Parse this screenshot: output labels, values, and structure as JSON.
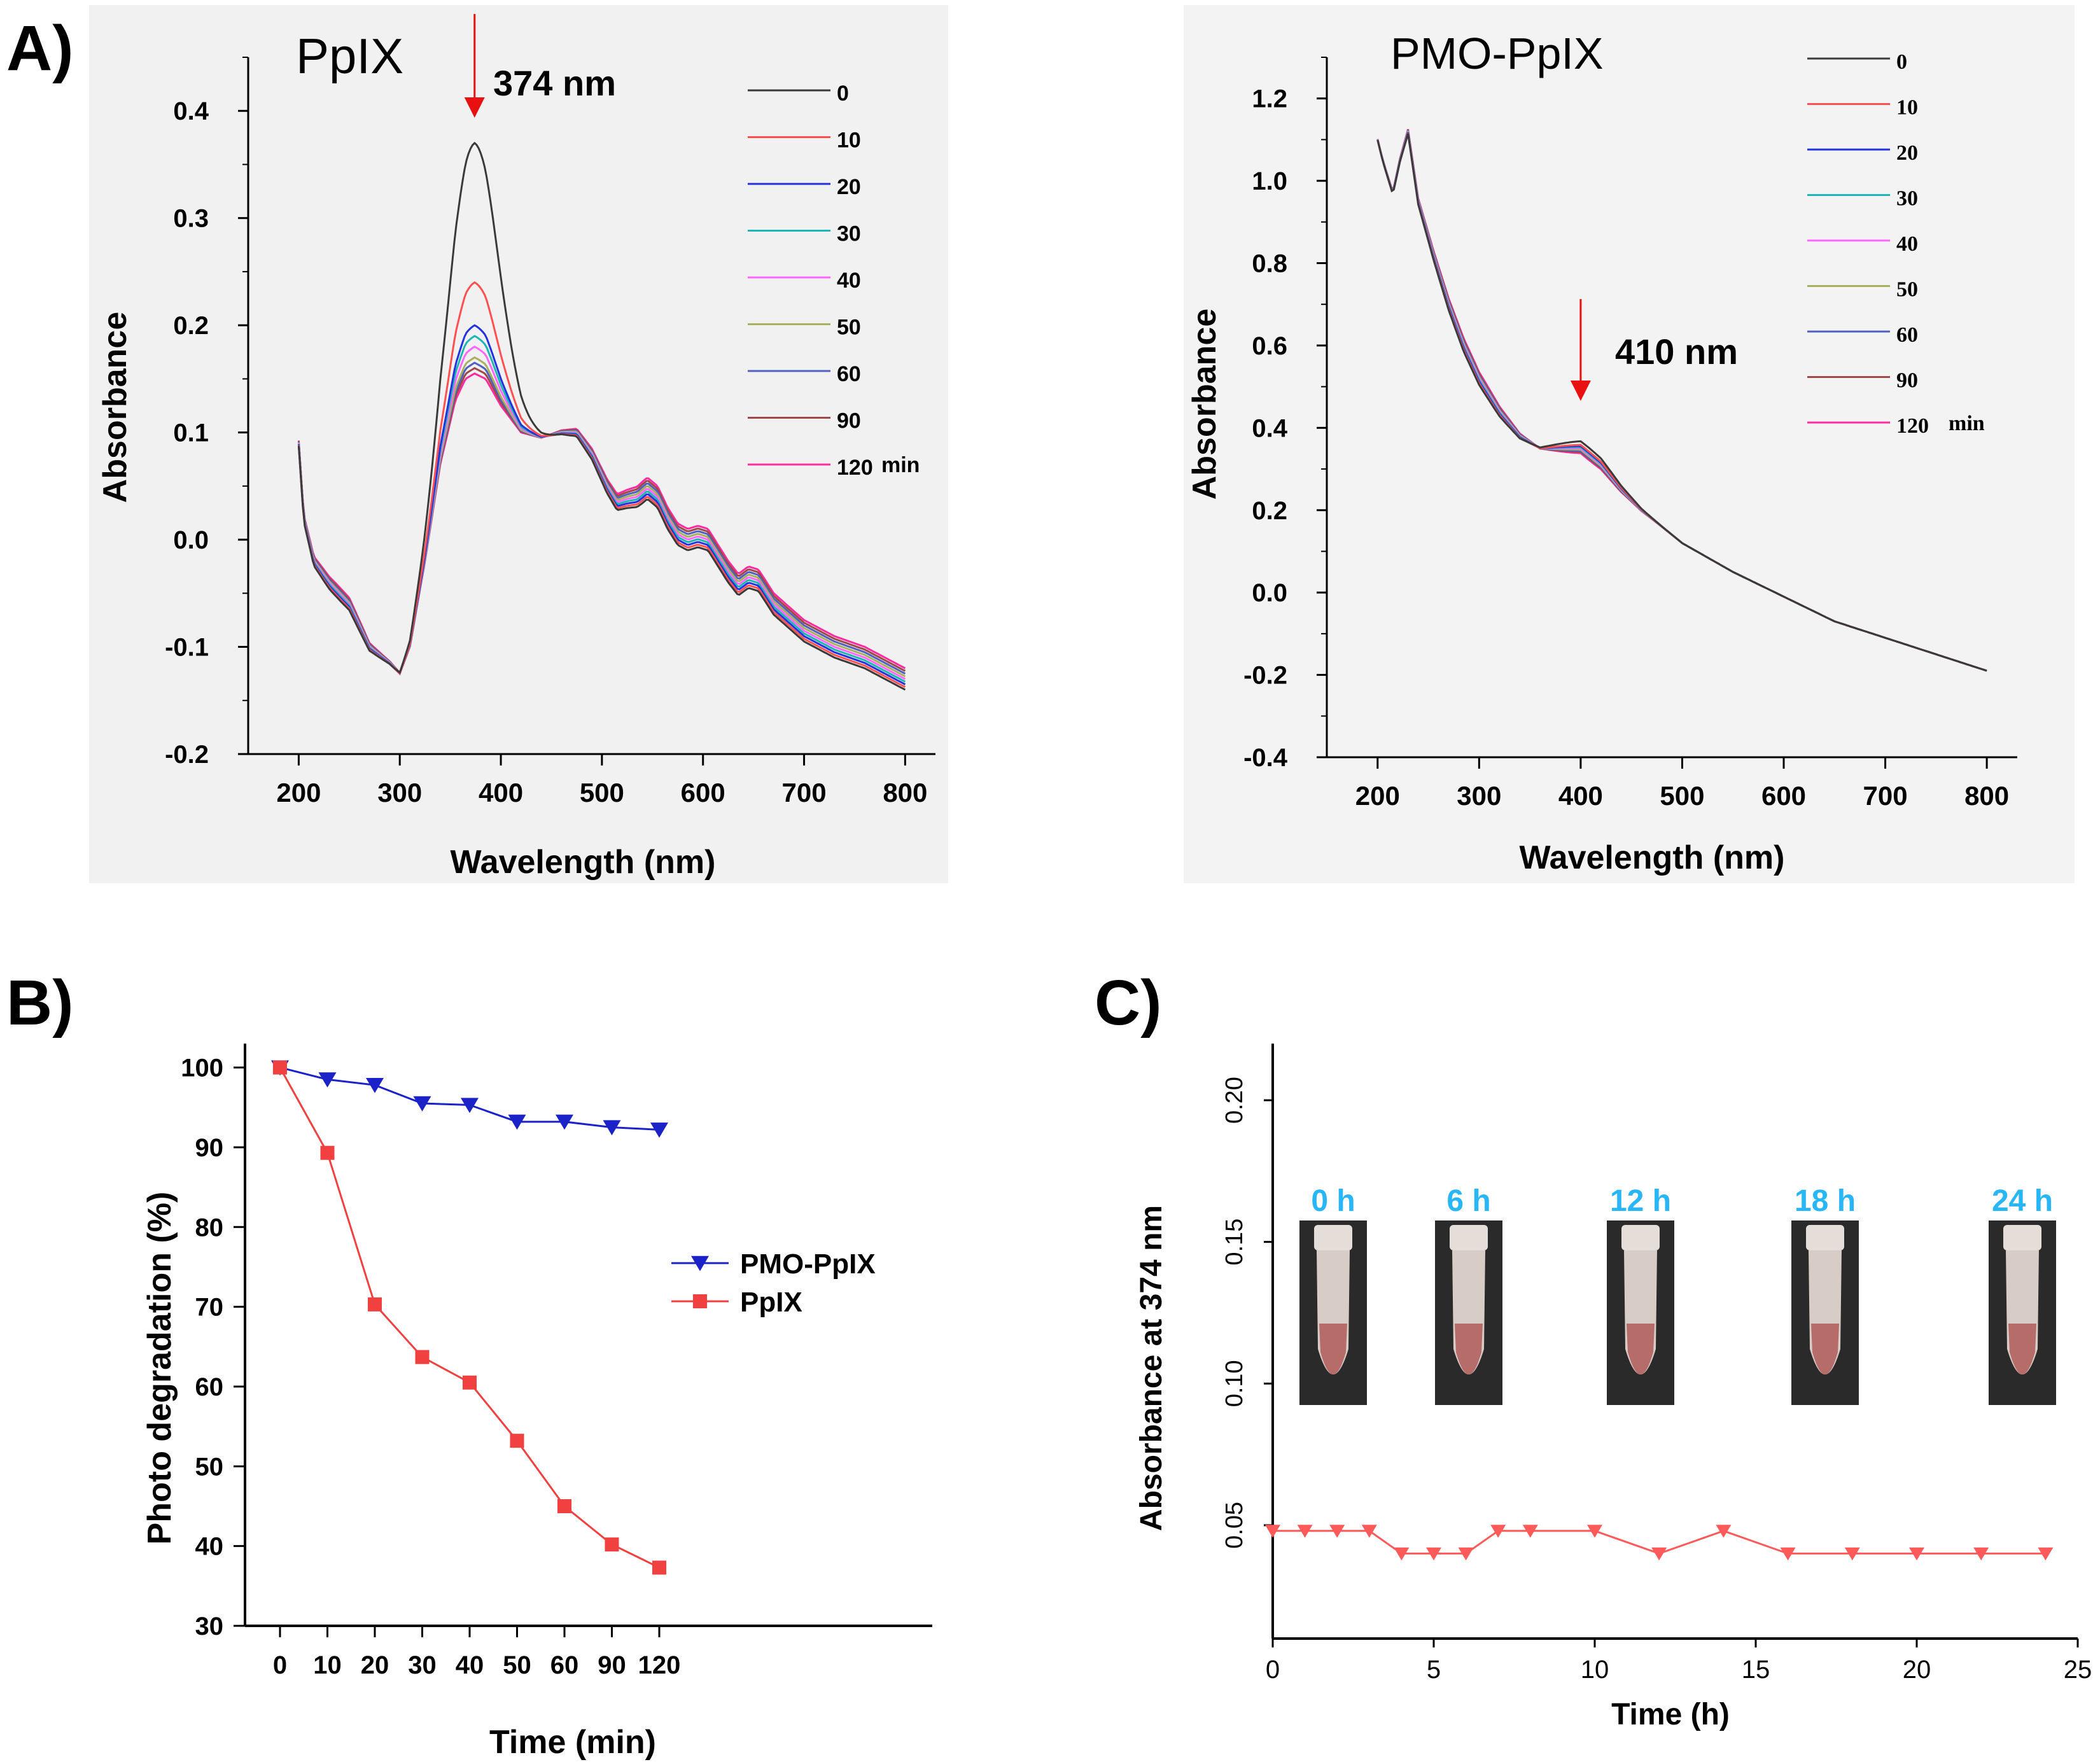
{
  "panel_labels": {
    "a": "A)",
    "b": "B)",
    "c": "C)"
  },
  "colors": {
    "series": [
      "#3a3a3a",
      "#ff5050",
      "#2233dd",
      "#1fb5b5",
      "#ff66ff",
      "#a8b060",
      "#5060c0",
      "#a04848",
      "#ff2aa0"
    ],
    "arrow": "#e81010",
    "pmo": "#1a22c8",
    "pplx": "#f04040",
    "stability": "#ff5a5a",
    "timepoint": "#29b6f6"
  },
  "chart_data": [
    {
      "id": "A1",
      "type": "line",
      "title": "PpIX",
      "annotation": "374 nm",
      "annotation_x": 374,
      "xlabel": "Wavelength (nm)",
      "ylabel": "Absorbance",
      "xlim": [
        150,
        830
      ],
      "ylim": [
        -0.2,
        0.45
      ],
      "xticks": [
        200,
        300,
        400,
        500,
        600,
        700,
        800
      ],
      "yticks": [
        -0.2,
        -0.1,
        0.0,
        0.1,
        0.2,
        0.3,
        0.4
      ],
      "ytick_labels": [
        "-0.2",
        "-0.1",
        "0.0",
        "0.1",
        "0.2",
        "0.3",
        "0.4"
      ],
      "legend": [
        "0",
        "10",
        "20",
        "30",
        "40",
        "50",
        "60",
        "90",
        "120"
      ],
      "legend_unit": "min",
      "peak_values": [
        0.37,
        0.24,
        0.2,
        0.19,
        0.18,
        0.17,
        0.165,
        0.16,
        0.155
      ],
      "base_curve": {
        "x": [
          200,
          205,
          215,
          230,
          250,
          270,
          290,
          300,
          310,
          325,
          340,
          355,
          365,
          374,
          385,
          400,
          420,
          440,
          460,
          475,
          490,
          505,
          515,
          525,
          535,
          545,
          555,
          565,
          575,
          585,
          595,
          605,
          615,
          625,
          635,
          645,
          655,
          670,
          700,
          730,
          760,
          790,
          800
        ],
        "y": [
          0.09,
          0.02,
          -0.02,
          -0.04,
          -0.06,
          -0.1,
          -0.115,
          -0.125,
          -0.1,
          -0.02,
          0.07,
          0.13,
          0.15,
          0.155,
          0.15,
          0.125,
          0.1,
          0.095,
          0.1,
          0.1,
          0.08,
          0.05,
          0.035,
          0.038,
          0.04,
          0.048,
          0.04,
          0.02,
          0.005,
          0.0,
          0.003,
          0.0,
          -0.015,
          -0.03,
          -0.042,
          -0.035,
          -0.038,
          -0.06,
          -0.085,
          -0.1,
          -0.11,
          -0.125,
          -0.13
        ]
      }
    },
    {
      "id": "A2",
      "type": "line",
      "title": "PMO-PpIX",
      "annotation": "410 nm",
      "annotation_x": 400,
      "xlabel": "Wavelength (nm)",
      "ylabel": "Absorbance",
      "xlim": [
        150,
        830
      ],
      "ylim": [
        -0.4,
        1.3
      ],
      "xticks": [
        200,
        300,
        400,
        500,
        600,
        700,
        800
      ],
      "yticks": [
        -0.4,
        -0.2,
        0.0,
        0.2,
        0.4,
        0.6,
        0.8,
        1.0,
        1.2
      ],
      "ytick_labels": [
        "-0.4",
        "-0.2",
        "0.0",
        "0.2",
        "0.4",
        "0.6",
        "0.8",
        "1.0",
        "1.2"
      ],
      "legend": [
        "0",
        "10",
        "20",
        "30",
        "40",
        "50",
        "60",
        "90",
        "120"
      ],
      "legend_unit": "min",
      "base_curve": {
        "x": [
          200,
          205,
          215,
          222,
          230,
          240,
          255,
          270,
          285,
          300,
          320,
          340,
          360,
          380,
          400,
          420,
          440,
          460,
          480,
          500,
          550,
          600,
          650,
          700,
          750,
          800
        ],
        "y": [
          1.1,
          1.05,
          0.97,
          1.05,
          1.12,
          0.95,
          0.82,
          0.7,
          0.6,
          0.52,
          0.44,
          0.38,
          0.35,
          0.35,
          0.35,
          0.31,
          0.25,
          0.2,
          0.16,
          0.12,
          0.05,
          -0.01,
          -0.07,
          -0.11,
          -0.15,
          -0.19
        ]
      }
    },
    {
      "id": "B",
      "type": "line",
      "xlabel": "Time (min)",
      "ylabel": "Photo degradation (%)",
      "categories": [
        "0",
        "10",
        "20",
        "30",
        "40",
        "50",
        "60",
        "90",
        "120"
      ],
      "ylim": [
        30,
        103
      ],
      "yticks": [
        30,
        40,
        50,
        60,
        70,
        80,
        90,
        100
      ],
      "series": [
        {
          "name": "PMO-PpIX",
          "marker": "triangle-down",
          "values": [
            100,
            98.5,
            97.8,
            95.5,
            95.3,
            93.2,
            93.2,
            92.5,
            92.2
          ]
        },
        {
          "name": "PpIX",
          "marker": "square",
          "values": [
            100,
            89.3,
            70.3,
            63.7,
            60.5,
            53.2,
            45.0,
            40.2,
            37.3
          ]
        }
      ]
    },
    {
      "id": "C",
      "type": "line",
      "xlabel": "Time (h)",
      "ylabel": "Absorbance at 374 nm",
      "xlim": [
        0,
        25
      ],
      "ylim": [
        0.01,
        0.22
      ],
      "xticks": [
        0,
        5,
        10,
        15,
        20,
        25
      ],
      "yticks": [
        0.05,
        0.1,
        0.15,
        0.2
      ],
      "ytick_labels": [
        "0.05",
        "0.10",
        "0.15",
        "0.20"
      ],
      "series": [
        {
          "name": "absorbance",
          "marker": "triangle-down",
          "x": [
            0,
            1,
            2,
            3,
            4,
            5,
            6,
            7,
            8,
            10,
            12,
            14,
            16,
            18,
            20,
            22,
            24
          ],
          "y": [
            0.048,
            0.048,
            0.048,
            0.048,
            0.04,
            0.04,
            0.04,
            0.048,
            0.048,
            0.048,
            0.04,
            0.048,
            0.04,
            0.04,
            0.04,
            0.04,
            0.04
          ]
        }
      ],
      "photo_labels": [
        "0 h",
        "6 h",
        "12 h",
        "18 h",
        "24 h"
      ]
    }
  ]
}
